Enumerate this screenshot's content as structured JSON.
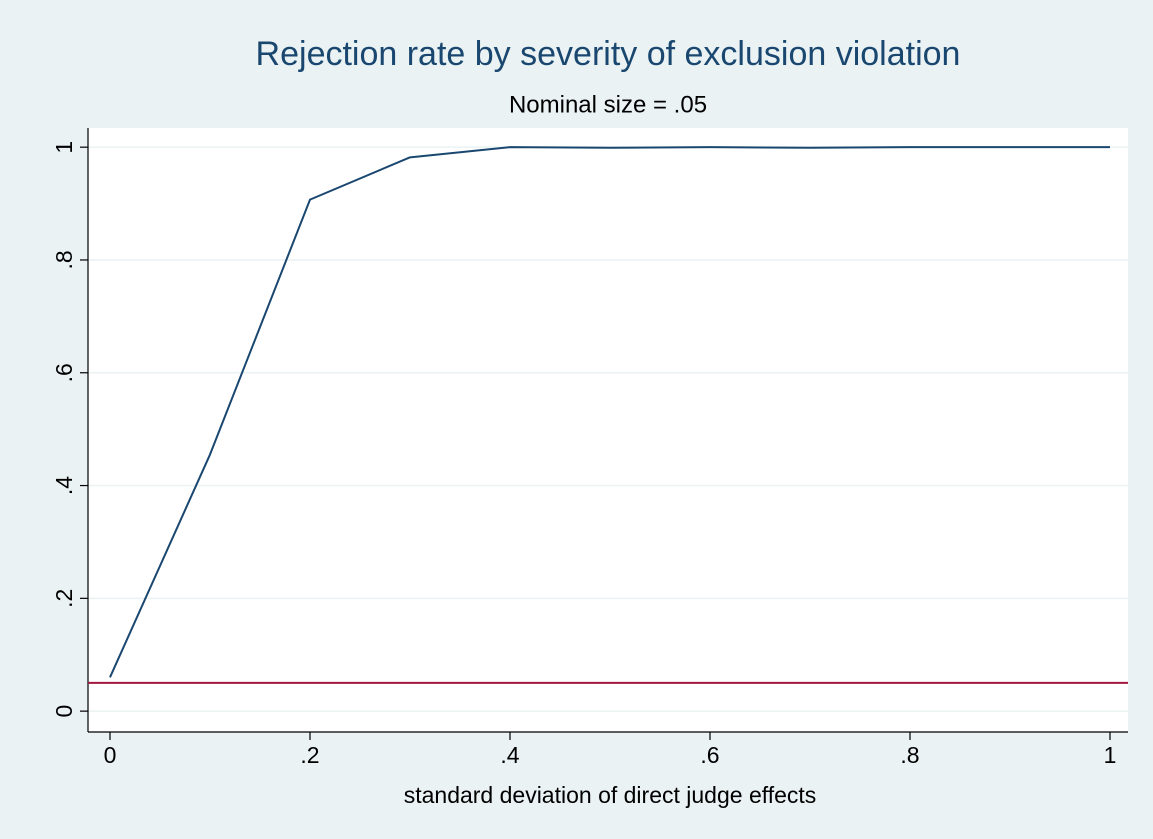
{
  "chart_data": {
    "type": "line",
    "title": "Rejection rate by severity of exclusion violation",
    "subtitle": "Nominal size = .05",
    "xlabel": "standard deviation of direct judge effects",
    "x": [
      0,
      0.1,
      0.2,
      0.3,
      0.4,
      0.5,
      0.6,
      0.7,
      0.8,
      0.9,
      1
    ],
    "series": [
      {
        "color": "#1a476f",
        "values": [
          0.06,
          0.455,
          0.907,
          0.982,
          1.0,
          0.999,
          1.0,
          0.999,
          1.0,
          1.0,
          1.0
        ]
      }
    ],
    "reference_line": {
      "value": 0.05,
      "color": "#a3173f"
    },
    "xlim": [
      -0.022,
      1.018
    ],
    "ylim": [
      -0.037,
      1.034
    ],
    "xticks": [
      0,
      {
        "value": 0.2,
        "label": ".2"
      },
      {
        "value": 0.4,
        "label": ".4"
      },
      {
        "value": 0.6,
        "label": ".6"
      },
      {
        "value": 0.8,
        "label": ".8"
      },
      1
    ],
    "yticks": [
      0,
      {
        "value": 0.2,
        "label": ".2"
      },
      {
        "value": 0.4,
        "label": ".4"
      },
      {
        "value": 0.6,
        "label": ".6"
      },
      {
        "value": 0.8,
        "label": ".8"
      },
      1
    ],
    "grid": true
  }
}
